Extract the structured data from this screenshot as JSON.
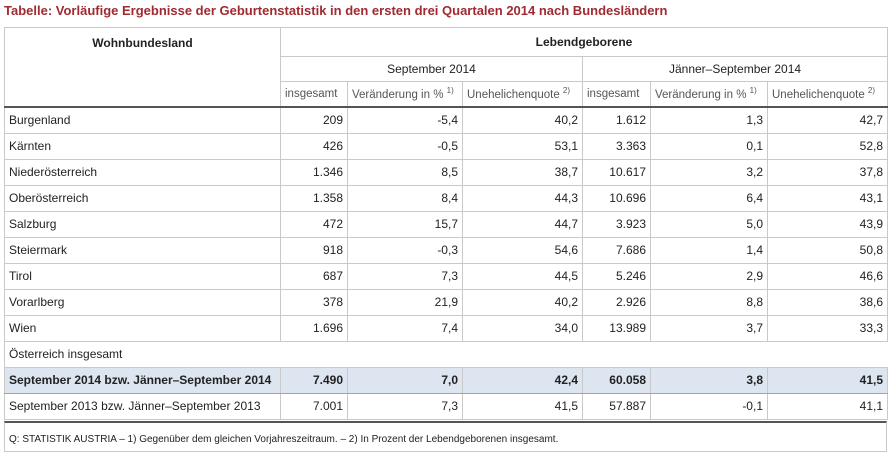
{
  "title": "Tabelle: Vorläufige Ergebnisse der Geburtenstatistik in den ersten drei Quartalen 2014 nach Bundesländern",
  "header": {
    "land": "Wohnbundesland",
    "group": "Lebendgeborene",
    "period1": "September 2014",
    "period2": "Jänner–September 2014",
    "col_total": "insgesamt",
    "col_change": "Veränderung in %",
    "col_change_note": "1)",
    "col_illeg": "Unehelichenquote",
    "col_illeg_note": "2)"
  },
  "rows": [
    {
      "land": "Burgenland",
      "a": "209",
      "b": "-5,4",
      "c": "40,2",
      "d": "1.612",
      "e": "1,3",
      "f": "42,7"
    },
    {
      "land": "Kärnten",
      "a": "426",
      "b": "-0,5",
      "c": "53,1",
      "d": "3.363",
      "e": "0,1",
      "f": "52,8"
    },
    {
      "land": "Niederösterreich",
      "a": "1.346",
      "b": "8,5",
      "c": "38,7",
      "d": "10.617",
      "e": "3,2",
      "f": "37,8"
    },
    {
      "land": "Oberösterreich",
      "a": "1.358",
      "b": "8,4",
      "c": "44,3",
      "d": "10.696",
      "e": "6,4",
      "f": "43,1"
    },
    {
      "land": "Salzburg",
      "a": "472",
      "b": "15,7",
      "c": "44,7",
      "d": "3.923",
      "e": "5,0",
      "f": "43,9"
    },
    {
      "land": "Steiermark",
      "a": "918",
      "b": "-0,3",
      "c": "54,6",
      "d": "7.686",
      "e": "1,4",
      "f": "50,8"
    },
    {
      "land": "Tirol",
      "a": "687",
      "b": "7,3",
      "c": "44,5",
      "d": "5.246",
      "e": "2,9",
      "f": "46,6"
    },
    {
      "land": "Vorarlberg",
      "a": "378",
      "b": "21,9",
      "c": "40,2",
      "d": "2.926",
      "e": "8,8",
      "f": "38,6"
    },
    {
      "land": "Wien",
      "a": "1.696",
      "b": "7,4",
      "c": "34,0",
      "d": "13.989",
      "e": "3,7",
      "f": "33,3"
    }
  ],
  "section_label": "Österreich insgesamt",
  "total_2014": {
    "land": "September 2014 bzw. Jänner–September 2014",
    "a": "7.490",
    "b": "7,0",
    "c": "42,4",
    "d": "60.058",
    "e": "3,8",
    "f": "41,5"
  },
  "total_2013": {
    "land": "September 2013 bzw. Jänner–September 2013",
    "a": "7.001",
    "b": "7,3",
    "c": "41,5",
    "d": "57.887",
    "e": "-0,1",
    "f": "41,1"
  },
  "source": "Q: STATISTIK AUSTRIA – 1) Gegenüber dem gleichen Vorjahreszeitraum. – 2) In Prozent der Lebendgeborenen insgesamt.",
  "colors": {
    "title": "#a02a30",
    "highlight": "#dde5f1",
    "border": "#c9c9c9"
  }
}
